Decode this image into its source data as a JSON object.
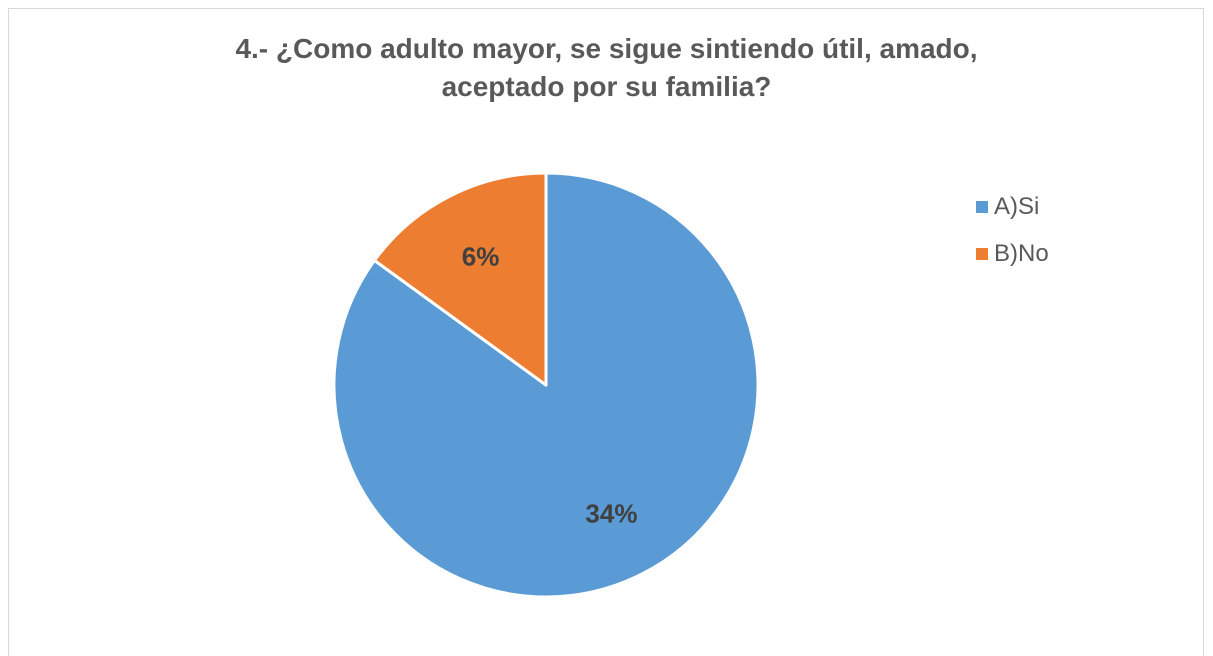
{
  "chart_data": {
    "type": "pie",
    "title_lines": [
      "4.- ¿Como adulto mayor, se sigue sintiendo útil, amado,",
      "aceptado por su familia?"
    ],
    "categories": [
      "A)Si",
      "B)No"
    ],
    "values": [
      34,
      6
    ],
    "data_labels": [
      "34%",
      "6%"
    ],
    "colors": [
      "#5b9bd5",
      "#ed7d31"
    ],
    "legend_position": "right",
    "start_angle": "top (12 o'clock), clockwise"
  }
}
